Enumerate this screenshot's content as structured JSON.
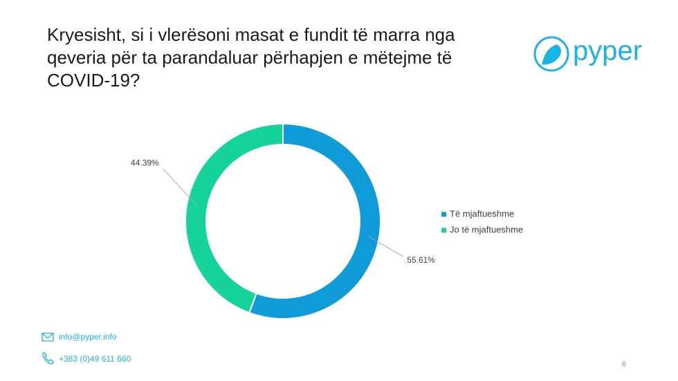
{
  "chart_data": {
    "type": "donut",
    "title": "Kryesisht, si i vlerësoni masat e fundit të marra nga qeveria për ta parandaluar përhapjen e mëtejme të COVID-19?",
    "series": [
      {
        "name": "Të mjaftueshme",
        "color": "#0f9bd7",
        "values": [
          55.61
        ],
        "value_labels": [
          "55.61%"
        ]
      },
      {
        "name": "Jo të mjaftueshme",
        "color": "#16d39b",
        "values": [
          44.39
        ],
        "value_labels": [
          "44.39%"
        ]
      }
    ],
    "legend": "right"
  },
  "logo": "pyper",
  "footer": {
    "email": "info@pyper.info",
    "phone": "+383 (0)49 611 660",
    "page": "6"
  }
}
